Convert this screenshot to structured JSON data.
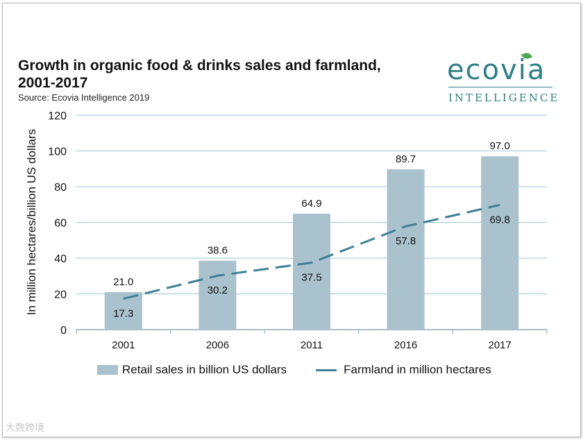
{
  "title": "Growth in organic food & drinks sales and farmland, 2001-2017",
  "source": "Source: Ecovia Intelligence 2019",
  "logo": {
    "main": "ecovia",
    "sub": "INTELLIGENCE"
  },
  "watermark": "大数跨境",
  "colors": {
    "bar": "#a9c2cd",
    "line": "#3f7f96",
    "grid": "#9cc4d3",
    "logo": "#2f7f87"
  },
  "chart_data": {
    "type": "bar",
    "categories": [
      "2001",
      "2006",
      "2011",
      "2016",
      "2017"
    ],
    "series": [
      {
        "name": "Retail sales in billion US dollars",
        "kind": "bar",
        "values": [
          21.0,
          38.6,
          64.9,
          89.7,
          97.0
        ]
      },
      {
        "name": "Farmland in million hectares",
        "kind": "line-dashed",
        "values": [
          17.3,
          30.2,
          37.5,
          57.8,
          69.8
        ]
      }
    ],
    "ylabel": "In million hectares/billion US dollars",
    "xlabel": "",
    "ylim": [
      0,
      120
    ],
    "yticks": [
      0,
      20,
      40,
      60,
      80,
      100,
      120
    ],
    "grid": true,
    "legend": "bottom"
  }
}
